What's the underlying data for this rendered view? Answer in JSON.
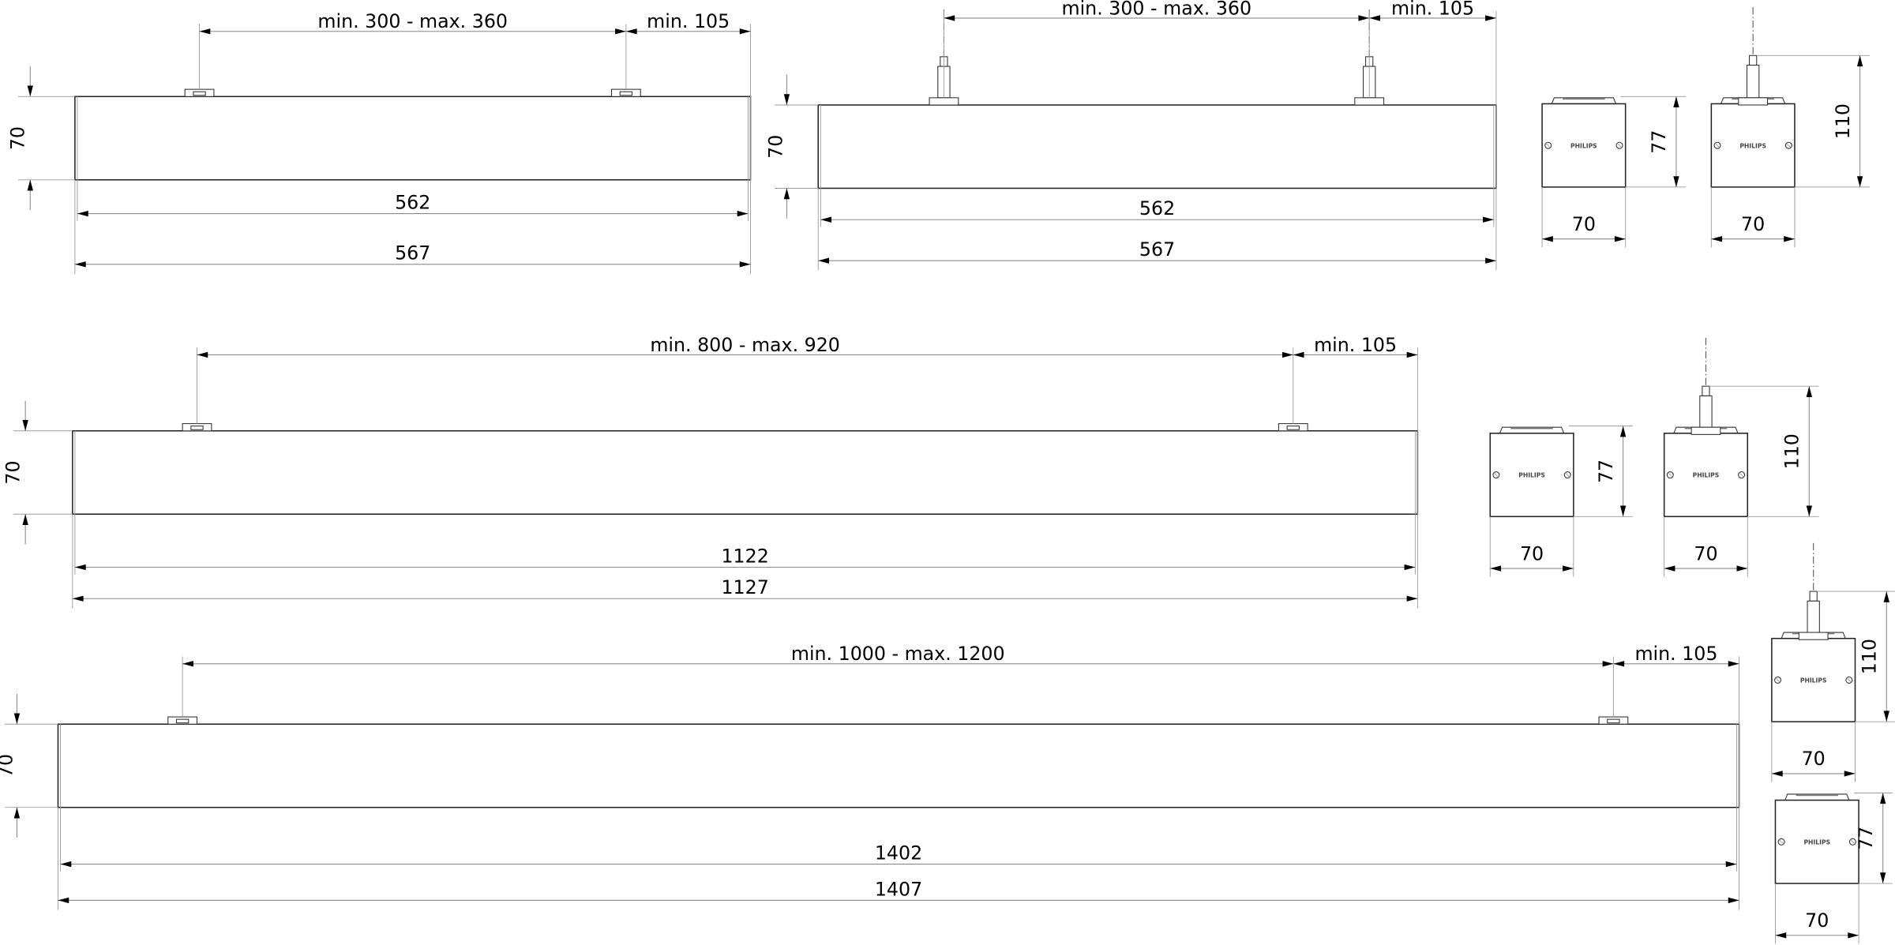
{
  "drawings": {
    "bar_600_surface": {
      "spacing": "min. 300 - max. 360",
      "end": "min.  105",
      "height": "70",
      "inner_length": "562",
      "length": "567"
    },
    "bar_600_suspended": {
      "spacing": "min. 300 - max. 360",
      "end": "min.  105",
      "height": "70",
      "inner_length": "562",
      "length": "567"
    },
    "bar_1200_surface": {
      "spacing": "min. 800 - max. 920",
      "end": "min.  105",
      "height": "70",
      "inner_length": "1122",
      "length": "1127"
    },
    "bar_1500_surface": {
      "spacing": "min. 1000 - max. 1200",
      "end": "min.  105",
      "height": "70",
      "inner_length": "1402",
      "length": "1407"
    },
    "side_surface_1": {
      "height": "77",
      "width": "70",
      "logo": "PHILIPS"
    },
    "side_suspended_1": {
      "height": "110",
      "width": "70",
      "logo": "PHILIPS"
    },
    "side_surface_2": {
      "height": "77",
      "width": "70",
      "logo": "PHILIPS"
    },
    "side_suspended_2": {
      "height": "110",
      "width": "70",
      "logo": "PHILIPS"
    },
    "side_suspended_3": {
      "height": "110",
      "width": "70",
      "logo": "PHILIPS"
    },
    "side_surface_3": {
      "height": "77",
      "width": "70",
      "logo": "PHILIPS"
    }
  }
}
